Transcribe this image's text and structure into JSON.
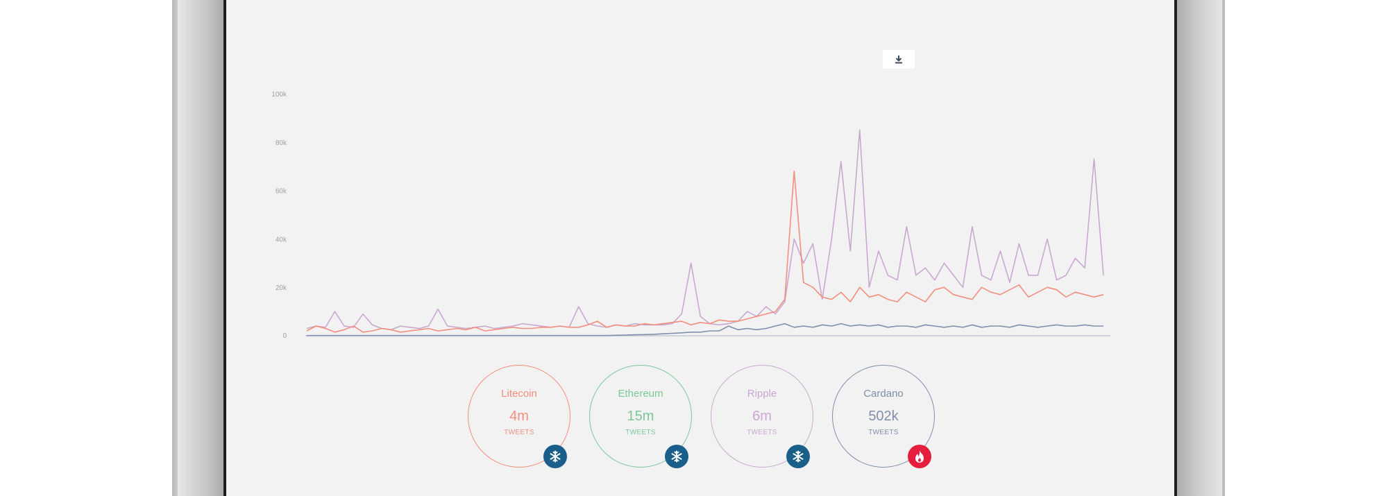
{
  "toolbar": {
    "download_icon": "download-icon"
  },
  "colors": {
    "Litecoin": "#f28e7c",
    "Ethereum": "#7cc79a",
    "Ripple": "#c9a8cf",
    "Cardano": "#7f8eaa",
    "cold_badge": "#1a5f8a",
    "hot_badge": "#e41e3c",
    "axis_text": "#a0a0a4"
  },
  "coins": [
    {
      "name": "Litecoin",
      "count": "4m",
      "unit": "TWEETS",
      "badge_icon": "snowflake-icon"
    },
    {
      "name": "Ethereum",
      "count": "15m",
      "unit": "TWEETS",
      "badge_icon": "snowflake-icon"
    },
    {
      "name": "Ripple",
      "count": "6m",
      "unit": "TWEETS",
      "badge_icon": "snowflake-icon"
    },
    {
      "name": "Cardano",
      "count": "502k",
      "unit": "TWEETS",
      "badge_icon": "flame-icon"
    }
  ],
  "chart_data": {
    "type": "line",
    "y_ticks": [
      "0",
      "20k",
      "40k",
      "60k",
      "80k",
      "100k"
    ],
    "ylim": [
      0,
      100000
    ],
    "grid": false,
    "legend": "none",
    "series": [
      {
        "name": "Ripple",
        "values": [
          3000,
          4000,
          3500,
          10000,
          4000,
          3500,
          9000,
          4500,
          3000,
          2500,
          4000,
          3500,
          3000,
          4000,
          11000,
          4000,
          3500,
          3000,
          3500,
          4000,
          3000,
          3500,
          4000,
          5000,
          4500,
          4000,
          3500,
          4000,
          3500,
          12000,
          5000,
          4000,
          3500,
          4500,
          4000,
          5000,
          4500,
          4500,
          4500,
          5000,
          9000,
          30000,
          8000,
          5000,
          4500,
          5000,
          6000,
          10000,
          8000,
          12000,
          9000,
          14000,
          40000,
          30000,
          38000,
          15000,
          40000,
          72000,
          35000,
          85000,
          20000,
          35000,
          25000,
          23000,
          45000,
          25000,
          28000,
          23000,
          30000,
          25000,
          20000,
          45000,
          25000,
          23000,
          35000,
          22000,
          38000,
          25000,
          25000,
          40000,
          23000,
          25000,
          32000,
          28000,
          73000,
          25000
        ]
      },
      {
        "name": "Litecoin",
        "values": [
          2000,
          4000,
          3000,
          1500,
          2500,
          4000,
          1500,
          2000,
          3000,
          2500,
          1500,
          2000,
          2500,
          3000,
          2000,
          2500,
          3000,
          2500,
          3500,
          2000,
          2500,
          3000,
          3500,
          3000,
          3000,
          3500,
          3500,
          4000,
          3500,
          3500,
          4500,
          6000,
          3500,
          4500,
          4000,
          4000,
          5000,
          4500,
          5000,
          5500,
          6000,
          4500,
          5500,
          5000,
          6500,
          6000,
          6000,
          7000,
          8000,
          9000,
          10000,
          15000,
          68000,
          22000,
          20000,
          16000,
          15000,
          18000,
          14000,
          20000,
          16000,
          17000,
          15000,
          14000,
          18000,
          16000,
          14000,
          19000,
          20000,
          17000,
          16000,
          15000,
          20000,
          18000,
          17000,
          19000,
          21000,
          16000,
          18000,
          20000,
          19000,
          16000,
          18000,
          17000,
          16000,
          17000
        ]
      },
      {
        "name": "Cardano",
        "values": [
          100,
          100,
          100,
          100,
          100,
          100,
          100,
          100,
          100,
          100,
          100,
          100,
          100,
          100,
          100,
          100,
          100,
          100,
          100,
          100,
          100,
          100,
          100,
          100,
          100,
          100,
          100,
          100,
          100,
          100,
          100,
          100,
          100,
          200,
          300,
          400,
          500,
          600,
          800,
          1000,
          1200,
          1500,
          1500,
          2000,
          2000,
          4000,
          2500,
          3000,
          2500,
          3000,
          4000,
          5000,
          3500,
          4000,
          3500,
          4500,
          4000,
          5000,
          4000,
          4500,
          4000,
          4500,
          3500,
          4000,
          4000,
          3500,
          4500,
          4000,
          3500,
          4000,
          3500,
          4500,
          3500,
          4000,
          4000,
          3500,
          4500,
          4000,
          3500,
          4000,
          4500,
          4000,
          4000,
          4500,
          4000,
          4000
        ]
      }
    ]
  }
}
